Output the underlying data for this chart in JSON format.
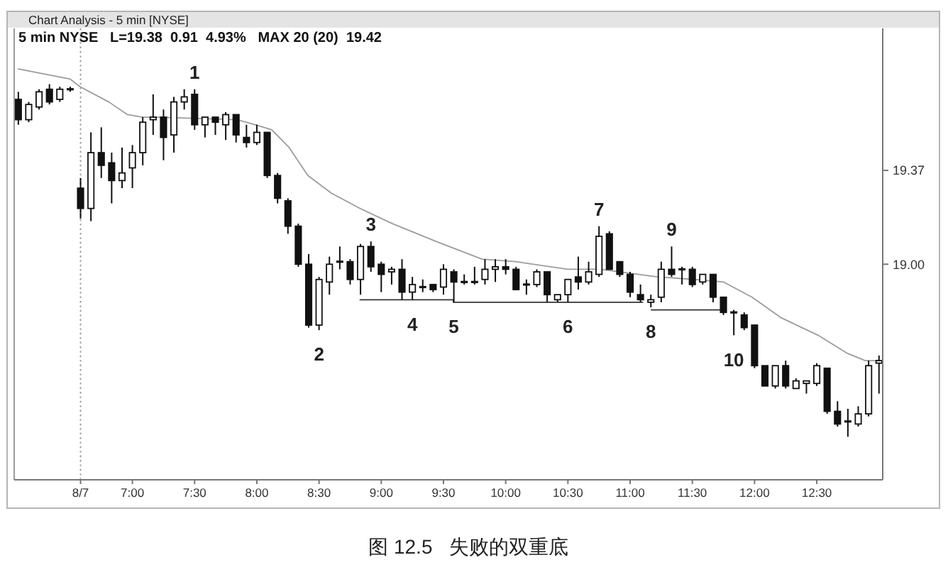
{
  "chart_data": {
    "type": "candlestick",
    "title": "Chart Analysis - 5 min [NYSE]",
    "subtitle": "5 min NYSE   L=19.38  0.91  4.93%   MAX 20 (20)  19.42",
    "color": "#111111",
    "x": [
      6.0833,
      6.1667,
      6.25,
      6.3333,
      6.4167,
      6.5,
      6.5833,
      6.6667,
      6.75,
      6.8333,
      6.9167,
      7,
      7.0833,
      7.1667,
      7.25,
      7.3333,
      7.4167,
      7.5,
      7.5833,
      7.6667,
      7.75,
      7.8333,
      7.9167,
      8,
      8.0833,
      8.1667,
      8.25,
      8.3333,
      8.4167,
      8.5,
      8.5833,
      8.6667,
      8.75,
      8.8333,
      8.9167,
      9,
      9.0833,
      9.1667,
      9.25,
      9.3333,
      9.4167,
      9.5,
      9.5833,
      9.6667,
      9.75,
      9.8333,
      9.9167,
      10,
      10.0833,
      10.1667,
      10.25,
      10.3333,
      10.4167,
      10.5,
      10.5833,
      10.6667,
      10.75,
      10.8333,
      10.9167,
      11,
      11.0833,
      11.1667,
      11.25,
      11.3333,
      11.4167,
      11.5,
      11.5833,
      11.6667,
      11.75,
      11.8333,
      11.9167,
      12,
      12.0833,
      12.1667,
      12.25,
      12.3333,
      12.4167,
      12.5,
      12.5833,
      12.6667,
      12.75,
      12.8333,
      12.9167,
      13
    ],
    "ohlc": [
      [
        19.65,
        19.68,
        19.55,
        19.57
      ],
      [
        19.57,
        19.64,
        19.56,
        19.63
      ],
      [
        19.62,
        19.69,
        19.61,
        19.68
      ],
      [
        19.69,
        19.71,
        19.63,
        19.64
      ],
      [
        19.65,
        19.7,
        19.64,
        19.69
      ],
      [
        19.69,
        19.7,
        19.68,
        19.69
      ],
      [
        19.3,
        19.34,
        19.18,
        19.22
      ],
      [
        19.22,
        19.52,
        19.17,
        19.44
      ],
      [
        19.44,
        19.54,
        19.34,
        19.39
      ],
      [
        19.4,
        19.44,
        19.24,
        19.33
      ],
      [
        19.33,
        19.46,
        19.3,
        19.36
      ],
      [
        19.38,
        19.47,
        19.3,
        19.44
      ],
      [
        19.44,
        19.58,
        19.39,
        19.56
      ],
      [
        19.57,
        19.67,
        19.51,
        19.58
      ],
      [
        19.58,
        19.61,
        19.41,
        19.5
      ],
      [
        19.51,
        19.66,
        19.44,
        19.64
      ],
      [
        19.64,
        19.69,
        19.61,
        19.66
      ],
      [
        19.67,
        19.69,
        19.53,
        19.55
      ],
      [
        19.55,
        19.58,
        19.5,
        19.58
      ],
      [
        19.58,
        19.58,
        19.51,
        19.56
      ],
      [
        19.55,
        19.6,
        19.49,
        19.59
      ],
      [
        19.59,
        19.59,
        19.48,
        19.51
      ],
      [
        19.5,
        19.55,
        19.46,
        19.48
      ],
      [
        19.48,
        19.55,
        19.47,
        19.52
      ],
      [
        19.52,
        19.52,
        19.34,
        19.35
      ],
      [
        19.35,
        19.36,
        19.24,
        19.26
      ],
      [
        19.25,
        19.26,
        19.12,
        19.15
      ],
      [
        19.15,
        19.16,
        18.99,
        19.0
      ],
      [
        19.0,
        19.04,
        18.75,
        18.76
      ],
      [
        18.76,
        18.95,
        18.74,
        18.94
      ],
      [
        18.93,
        19.03,
        18.88,
        19.0
      ],
      [
        19.01,
        19.07,
        18.98,
        19.01
      ],
      [
        19.01,
        19.02,
        18.92,
        18.94
      ],
      [
        18.94,
        19.08,
        18.88,
        19.07
      ],
      [
        19.07,
        19.09,
        18.97,
        18.99
      ],
      [
        19.0,
        19.01,
        18.89,
        18.96
      ],
      [
        18.97,
        18.99,
        18.92,
        18.98
      ],
      [
        18.98,
        19.02,
        18.86,
        18.89
      ],
      [
        18.89,
        18.95,
        18.86,
        18.92
      ],
      [
        18.91,
        18.94,
        18.89,
        18.91
      ],
      [
        18.92,
        18.92,
        18.89,
        18.9
      ],
      [
        18.91,
        19.0,
        18.88,
        18.98
      ],
      [
        18.97,
        18.98,
        18.85,
        18.93
      ],
      [
        18.93,
        18.96,
        18.92,
        18.93
      ],
      [
        18.93,
        18.99,
        18.92,
        18.93
      ],
      [
        18.94,
        19.02,
        18.92,
        18.98
      ],
      [
        18.98,
        19.02,
        18.93,
        18.99
      ],
      [
        18.99,
        19.02,
        18.96,
        18.98
      ],
      [
        18.98,
        18.99,
        18.9,
        18.9
      ],
      [
        18.92,
        18.94,
        18.88,
        18.92
      ],
      [
        18.92,
        18.98,
        18.91,
        18.97
      ],
      [
        18.97,
        18.97,
        18.85,
        18.88
      ],
      [
        18.86,
        18.88,
        18.85,
        18.88
      ],
      [
        18.88,
        18.94,
        18.85,
        18.94
      ],
      [
        18.95,
        19.03,
        18.9,
        18.93
      ],
      [
        18.93,
        19.01,
        18.92,
        18.97
      ],
      [
        18.96,
        19.15,
        18.95,
        19.11
      ],
      [
        19.12,
        19.13,
        18.98,
        18.98
      ],
      [
        19.01,
        19.01,
        18.95,
        18.96
      ],
      [
        18.96,
        18.97,
        18.87,
        18.89
      ],
      [
        18.88,
        18.92,
        18.85,
        18.86
      ],
      [
        18.85,
        18.88,
        18.83,
        18.86
      ],
      [
        18.87,
        19.01,
        18.85,
        18.98
      ],
      [
        18.98,
        19.07,
        18.95,
        18.96
      ],
      [
        18.98,
        18.99,
        18.92,
        18.98
      ],
      [
        18.98,
        18.99,
        18.91,
        18.92
      ],
      [
        18.93,
        18.96,
        18.92,
        18.96
      ],
      [
        18.96,
        18.96,
        18.85,
        18.87
      ],
      [
        18.87,
        18.87,
        18.8,
        18.81
      ],
      [
        18.81,
        18.82,
        18.72,
        18.81
      ],
      [
        18.8,
        18.81,
        18.74,
        18.75
      ],
      [
        18.76,
        18.76,
        18.59,
        18.6
      ],
      [
        18.6,
        18.6,
        18.52,
        18.52
      ],
      [
        18.52,
        18.6,
        18.51,
        18.6
      ],
      [
        18.6,
        18.62,
        18.51,
        18.52
      ],
      [
        18.51,
        18.55,
        18.51,
        18.54
      ],
      [
        18.53,
        18.54,
        18.49,
        18.54
      ],
      [
        18.53,
        18.61,
        18.52,
        18.6
      ],
      [
        18.59,
        18.59,
        18.41,
        18.42
      ],
      [
        18.42,
        18.46,
        18.36,
        18.37
      ],
      [
        18.38,
        18.43,
        18.32,
        18.38
      ],
      [
        18.37,
        18.44,
        18.36,
        18.41
      ],
      [
        18.41,
        18.62,
        18.4,
        18.6
      ],
      [
        18.61,
        18.64,
        18.49,
        18.62
      ]
    ],
    "series": [
      {
        "type": "line",
        "color": "#9c9c9c",
        "x": [
          6.0833,
          6.5,
          6.58,
          6.81,
          6.96,
          7.08,
          7.19,
          7.84,
          7.99,
          8.12,
          8.26,
          8.41,
          8.6,
          8.83,
          9.09,
          9.44,
          9.81,
          10.08,
          10.5,
          10.76,
          11.22,
          11.52,
          11.75,
          11.98,
          12.21,
          12.51,
          12.74,
          12.89,
          13
        ],
        "values": [
          19.77,
          19.73,
          19.7,
          19.64,
          19.59,
          19.58,
          19.58,
          19.57,
          19.55,
          19.53,
          19.46,
          19.35,
          19.28,
          19.22,
          19.16,
          19.09,
          19.02,
          19.01,
          18.98,
          18.98,
          18.95,
          18.94,
          18.93,
          18.87,
          18.79,
          18.72,
          18.65,
          18.62,
          18.62
        ]
      },
      {
        "type": "line",
        "color": "#333333",
        "x": [
          8.83,
          9.58,
          9.58,
          11.1
        ],
        "values": [
          18.86,
          18.86,
          18.85,
          18.85
        ]
      },
      {
        "type": "line",
        "color": "#333333",
        "x": [
          11.17,
          11.75
        ],
        "values": [
          18.82,
          18.82
        ]
      }
    ],
    "ref_lines": [
      {
        "axis": "x",
        "value": 6.5833,
        "line_style": "dotted",
        "color": "#9a9a9a"
      }
    ],
    "xlim": [
      6.05,
      13.03
    ],
    "ylim": [
      18.15,
      19.93
    ],
    "xticks": [
      {
        "value": 6.5833,
        "label": "8/7"
      },
      {
        "value": 7,
        "label": "7:00"
      },
      {
        "value": 7.5,
        "label": "7:30"
      },
      {
        "value": 8,
        "label": "8:00"
      },
      {
        "value": 8.5,
        "label": "8:30"
      },
      {
        "value": 9,
        "label": "9:00"
      },
      {
        "value": 9.5,
        "label": "9:30"
      },
      {
        "value": 10,
        "label": "10:00"
      },
      {
        "value": 10.5,
        "label": "10:30"
      },
      {
        "value": 11,
        "label": "11:00"
      },
      {
        "value": 11.5,
        "label": "11:30"
      },
      {
        "value": 12,
        "label": "12:00"
      },
      {
        "value": 12.5,
        "label": "12:30"
      }
    ],
    "yticks": [
      {
        "value": 19,
        "label": "19.00"
      },
      {
        "value": 19.37,
        "label": "19.37"
      }
    ],
    "annotations": [
      {
        "text": "1",
        "x": 7.5,
        "y": 19.69
      },
      {
        "text": "2",
        "x": 8.5,
        "y": 18.74
      },
      {
        "text": "3",
        "x": 8.9167,
        "y": 19.09
      },
      {
        "text": "4",
        "x": 9.25,
        "y": 18.86
      },
      {
        "text": "5",
        "x": 9.5833,
        "y": 18.85
      },
      {
        "text": "6",
        "x": 10.5,
        "y": 18.85
      },
      {
        "text": "7",
        "x": 10.75,
        "y": 19.15
      },
      {
        "text": "8",
        "x": 11.1667,
        "y": 18.83
      },
      {
        "text": "9",
        "x": 11.3333,
        "y": 19.07
      },
      {
        "text": "10",
        "x": 11.8333,
        "y": 18.72
      },
      "图 12.5   失败的双重底"
    ]
  }
}
